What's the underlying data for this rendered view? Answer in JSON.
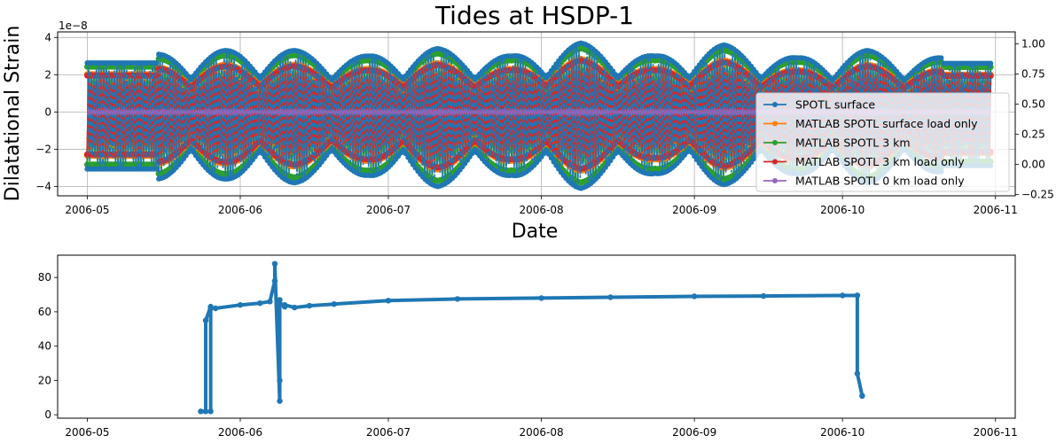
{
  "chart_data": [
    {
      "type": "line",
      "title": "Tides at HSDP-1",
      "xlabel": "Date",
      "ylabel": "Dilatational Strain",
      "y_offset_label": "1e−8",
      "x_ticks": [
        "2006-05",
        "2006-06",
        "2006-07",
        "2006-08",
        "2006-09",
        "2006-10",
        "2006-11"
      ],
      "x_tick_dates": [
        "2006-05-01",
        "2006-06-01",
        "2006-07-01",
        "2006-08-01",
        "2006-09-01",
        "2006-10-01",
        "2006-11-01"
      ],
      "xlim": [
        "2006-04-25",
        "2006-11-05"
      ],
      "ylim": [
        -4.5,
        4.3
      ],
      "y_ticks": [
        -4,
        -2,
        0,
        2,
        4
      ],
      "y_tick_labels": [
        "−4",
        "−2",
        "0",
        "2",
        "4"
      ],
      "right_ylim": [
        -0.26,
        1.1
      ],
      "right_y_ticks": [
        -0.25,
        0,
        0.25,
        0.5,
        0.75,
        1.0
      ],
      "right_y_tick_labels": [
        "−0.25",
        "0.00",
        "0.25",
        "0.50",
        "0.75",
        "1.00"
      ],
      "grid": true,
      "legend_placement": "lower-right",
      "series": [
        {
          "name": "SPOTL surface",
          "color": "#1f77b4",
          "marker": "circle",
          "amplitude": 3.9
        },
        {
          "name": "MATLAB SPOTL surface load only",
          "color": "#ff7f0e",
          "marker": "circle",
          "amplitude": 3.0
        },
        {
          "name": "MATLAB SPOTL 3 km",
          "color": "#2ca02c",
          "marker": "circle",
          "amplitude": 3.6
        },
        {
          "name": "MATLAB SPOTL 3 km load only",
          "color": "#d62728",
          "marker": "circle",
          "amplitude": 2.9
        },
        {
          "name": "MATLAB SPOTL 0 km load only",
          "color": "#9467bd",
          "marker": "circle",
          "amplitude": 0.2
        }
      ],
      "series_date_range": [
        "2006-05-01",
        "2006-10-31"
      ],
      "envelope_peaks": {
        "dates": [
          "2006-05-15",
          "2006-05-29",
          "2006-06-12",
          "2006-06-27",
          "2006-07-11",
          "2006-07-26",
          "2006-08-09",
          "2006-08-24",
          "2006-09-07",
          "2006-09-22",
          "2006-10-06",
          "2006-10-21"
        ],
        "max_values": [
          3.1,
          3.3,
          3.3,
          3.0,
          3.4,
          3.0,
          3.7,
          3.0,
          3.6,
          2.9,
          3.3,
          2.9
        ],
        "min_values": [
          -3.6,
          -3.6,
          -3.8,
          -3.4,
          -4.0,
          -3.4,
          -4.1,
          -3.3,
          -3.9,
          -3.3,
          -3.8,
          -3.2
        ]
      }
    },
    {
      "type": "line",
      "title": "",
      "xlabel": "",
      "ylabel": "",
      "x_ticks": [
        "2006-05",
        "2006-06",
        "2006-07",
        "2006-08",
        "2006-09",
        "2006-10",
        "2006-11"
      ],
      "x_tick_dates": [
        "2006-05-01",
        "2006-06-01",
        "2006-07-01",
        "2006-08-01",
        "2006-09-01",
        "2006-10-01",
        "2006-11-01"
      ],
      "xlim": [
        "2006-04-25",
        "2006-11-05"
      ],
      "ylim": [
        -2,
        93
      ],
      "y_ticks": [
        0,
        20,
        40,
        60,
        80
      ],
      "y_tick_labels": [
        "0",
        "20",
        "40",
        "60",
        "80"
      ],
      "grid": false,
      "series": [
        {
          "name": "",
          "color": "#1f77b4",
          "marker": "circle",
          "x": [
            "2006-05-24",
            "2006-05-25",
            "2006-05-25",
            "2006-05-26",
            "2006-05-26",
            "2006-05-26",
            "2006-05-27",
            "2006-06-01",
            "2006-06-05",
            "2006-06-07",
            "2006-06-08",
            "2006-06-08",
            "2006-06-09",
            "2006-06-09",
            "2006-06-09",
            "2006-06-09",
            "2006-06-10",
            "2006-06-10",
            "2006-06-12",
            "2006-06-15",
            "2006-06-20",
            "2006-07-01",
            "2006-07-15",
            "2006-08-01",
            "2006-08-15",
            "2006-09-01",
            "2006-09-15",
            "2006-10-01",
            "2006-10-04",
            "2006-10-04",
            "2006-10-04",
            "2006-10-05",
            "2006-10-05"
          ],
          "y": [
            2,
            2,
            55,
            63,
            2,
            62,
            62,
            64,
            65,
            66,
            78,
            88,
            8,
            20,
            67,
            65,
            63,
            64,
            62.5,
            63.5,
            64.5,
            66.5,
            67.5,
            68,
            68.5,
            69,
            69.2,
            69.5,
            69.5,
            69.5,
            24,
            11,
            11
          ]
        }
      ]
    }
  ]
}
